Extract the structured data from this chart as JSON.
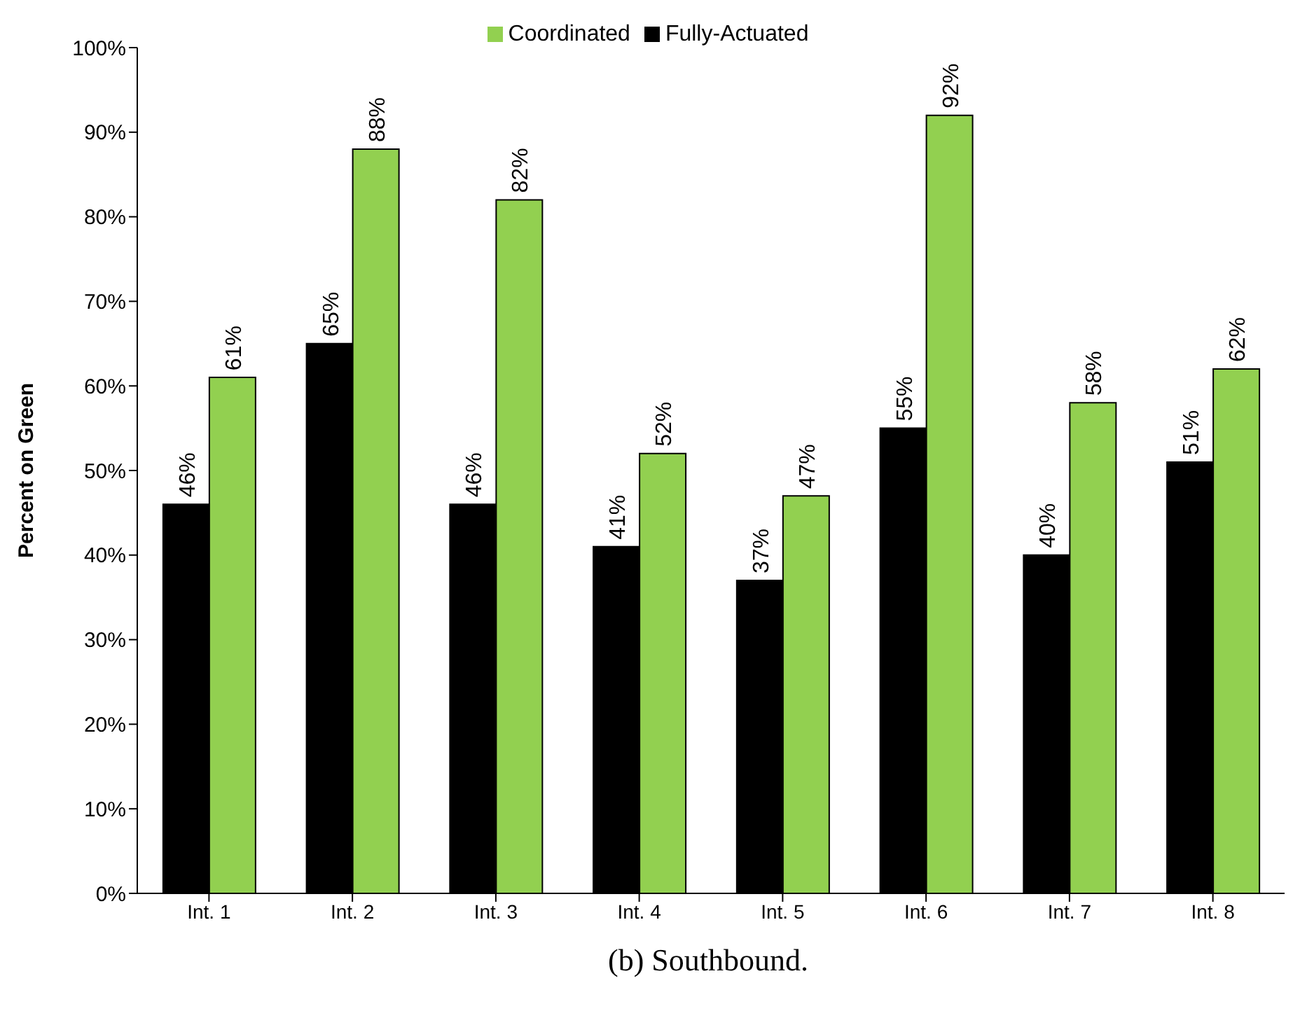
{
  "chart_data": {
    "type": "bar",
    "ylabel": "Percent on Green",
    "categories": [
      "Int. 1",
      "Int. 2",
      "Int. 3",
      "Int. 4",
      "Int. 5",
      "Int. 6",
      "Int. 7",
      "Int. 8"
    ],
    "series": [
      {
        "name": "Fully-Actuated",
        "color": "#000000",
        "values": [
          46,
          65,
          46,
          41,
          37,
          55,
          40,
          51
        ],
        "value_labels": [
          "46%",
          "65%",
          "46%",
          "41%",
          "37%",
          "55%",
          "40%",
          "51%"
        ]
      },
      {
        "name": "Coordinated",
        "color": "#92d050",
        "values": [
          61,
          88,
          82,
          52,
          47,
          92,
          58,
          62
        ],
        "value_labels": [
          "61%",
          "88%",
          "82%",
          "52%",
          "47%",
          "92%",
          "58%",
          "62%"
        ]
      }
    ],
    "ylim": [
      0,
      100
    ],
    "yticks": [
      {
        "value": 0,
        "label": "0%"
      },
      {
        "value": 10,
        "label": "10%"
      },
      {
        "value": 20,
        "label": "20%"
      },
      {
        "value": 30,
        "label": "30%"
      },
      {
        "value": 40,
        "label": "40%"
      },
      {
        "value": 50,
        "label": "50%"
      },
      {
        "value": 60,
        "label": "60%"
      },
      {
        "value": 70,
        "label": "70%"
      },
      {
        "value": 80,
        "label": "80%"
      },
      {
        "value": 90,
        "label": "90%"
      },
      {
        "value": 100,
        "label": "100%"
      }
    ],
    "grid": false,
    "legend": "top",
    "annotations": [
      "(b) Southbound."
    ]
  }
}
